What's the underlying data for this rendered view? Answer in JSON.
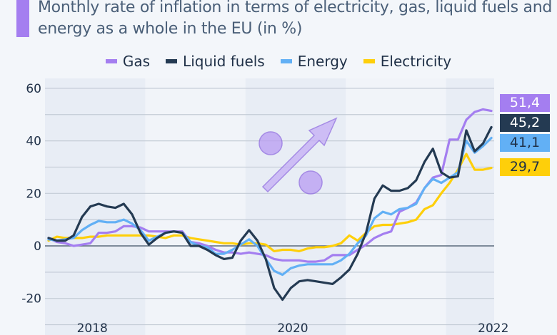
{
  "title": "Monthly rate of inflation in terms of electricity, gas, liquid fuels and energy as a whole in the EU (in %)",
  "chart_data": {
    "type": "line",
    "title": "Monthly rate of inflation in terms of electricity, gas, liquid fuels and energy as a whole in the EU (in %)",
    "xlabel": "",
    "ylabel": "",
    "x_start": "2018-01",
    "x_end": "2022-06",
    "x_ticks": [
      "2018",
      "2020",
      "2022"
    ],
    "y_ticks": [
      "60",
      "40",
      "20",
      "0",
      "-20"
    ],
    "ylim": [
      -30,
      60
    ],
    "grid": true,
    "legend": "top",
    "shaded_years": [
      "2018",
      "2020",
      "2022"
    ],
    "series": [
      {
        "name": "Gas",
        "color": "#a47ef0",
        "end_label": "51,4",
        "values": [
          3,
          1.5,
          1,
          0,
          0.5,
          1,
          5,
          5,
          5.5,
          7.5,
          7.5,
          7,
          5.5,
          5.5,
          5.5,
          5.5,
          5.5,
          1.5,
          1,
          0,
          -1.5,
          -2.5,
          -2.5,
          -3,
          -2.5,
          -3,
          -3.5,
          -5,
          -5.5,
          -5.5,
          -5.5,
          -6,
          -6,
          -5.5,
          -3.5,
          -3.5,
          -3.5,
          -1.5,
          0.5,
          3,
          4.5,
          5.5,
          13,
          14.5,
          16.5,
          22,
          26,
          27,
          40.5,
          40.5,
          48,
          51,
          52,
          51.4
        ]
      },
      {
        "name": "Liquid fuels",
        "color": "#243a52",
        "end_label": "45,2",
        "values": [
          3,
          2,
          2,
          4,
          11,
          15,
          16,
          15,
          14.5,
          16,
          12,
          5,
          0.5,
          3,
          5,
          5.5,
          5,
          0,
          0,
          -1.5,
          -3.5,
          -5,
          -4.5,
          2,
          6,
          2,
          -5,
          -16,
          -20.5,
          -16,
          -13.5,
          -13,
          -13.5,
          -14,
          -14.5,
          -12,
          -9,
          -3,
          5,
          18,
          23,
          21,
          21,
          22,
          25,
          32,
          37,
          28,
          26,
          26.5,
          44,
          36,
          39,
          45.2
        ]
      },
      {
        "name": "Energy",
        "color": "#62b0f5",
        "end_label": "41,1",
        "values": [
          2.5,
          2,
          2.5,
          3,
          6,
          8,
          9.5,
          9,
          9,
          10,
          8.5,
          6,
          2,
          3.5,
          5,
          5.5,
          5,
          1.5,
          0,
          -0.5,
          -3,
          -3,
          -1.5,
          0.5,
          2.5,
          0,
          -5,
          -9.5,
          -11,
          -8.5,
          -7.5,
          -7,
          -7,
          -7,
          -7,
          -5.5,
          -3,
          1,
          4,
          10.5,
          13,
          12,
          14,
          14.5,
          16,
          22,
          25.5,
          24,
          26,
          28,
          40,
          35.5,
          38,
          41.1
        ]
      },
      {
        "name": "Electricity",
        "color": "#fecf0a",
        "end_label": "29,7",
        "values": [
          2,
          3.5,
          3,
          3,
          3,
          3.5,
          3.5,
          4,
          4,
          4,
          4,
          4,
          4,
          3.5,
          3,
          4,
          4,
          3,
          2.5,
          2,
          1.5,
          1,
          1,
          0.5,
          1,
          1,
          0.5,
          -2,
          -1.5,
          -1.5,
          -2,
          -1,
          -0.5,
          -0.5,
          0,
          1,
          4,
          2,
          5,
          7.5,
          8,
          8,
          8.5,
          9,
          10,
          14,
          15.5,
          20,
          24,
          29,
          35,
          29,
          29,
          29.7
        ]
      }
    ]
  }
}
